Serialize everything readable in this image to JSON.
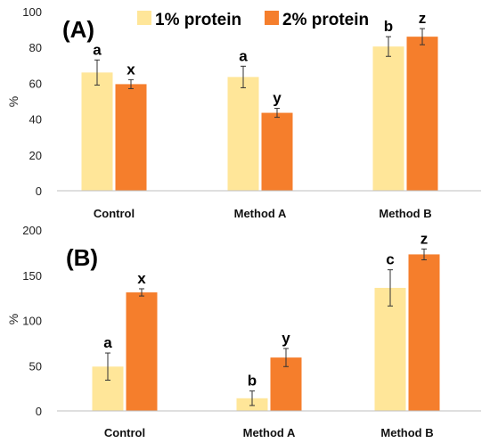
{
  "chart_data": [
    {
      "type": "bar",
      "panel_label": "(A)",
      "ylabel": "%",
      "ylim": [
        0,
        100
      ],
      "yticks": [
        0,
        20,
        40,
        60,
        80,
        100
      ],
      "categories": [
        "Control",
        "Method A",
        "Method B"
      ],
      "series": [
        {
          "name": "1% protein",
          "color": "#FFE699",
          "values": [
            66,
            63.5,
            80.5
          ],
          "errors": [
            7,
            6,
            5.5
          ],
          "letters": [
            "a",
            "a",
            "b"
          ]
        },
        {
          "name": "2% protein",
          "color": "#F57E2C",
          "values": [
            59.5,
            43.5,
            86
          ],
          "errors": [
            2.5,
            2.5,
            4.5
          ],
          "letters": [
            "x",
            "y",
            "z"
          ]
        }
      ],
      "legend": "top"
    },
    {
      "type": "bar",
      "panel_label": "(B)",
      "ylabel": "%",
      "ylim": [
        0,
        200
      ],
      "yticks": [
        0,
        50,
        100,
        150,
        200
      ],
      "categories": [
        "Control",
        "Method A",
        "Method B"
      ],
      "series": [
        {
          "name": "1% protein",
          "color": "#FFE699",
          "values": [
            49,
            14,
            136
          ],
          "errors": [
            15,
            8,
            20
          ],
          "letters": [
            "a",
            "b",
            "c"
          ]
        },
        {
          "name": "2% protein",
          "color": "#F57E2C",
          "values": [
            131,
            59,
            173
          ],
          "errors": [
            4,
            10,
            6
          ],
          "letters": [
            "x",
            "y",
            "z"
          ]
        }
      ]
    }
  ]
}
